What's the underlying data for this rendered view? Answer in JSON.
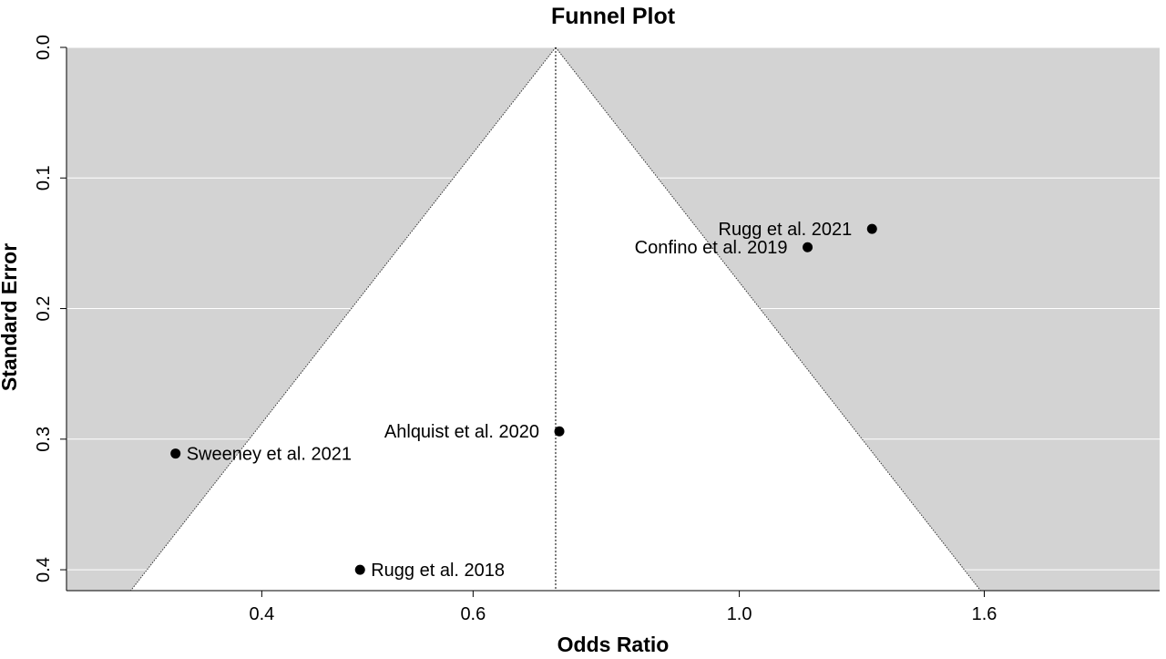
{
  "chart_data": {
    "type": "scatter",
    "title": "Funnel Plot",
    "xlabel": "Odds Ratio",
    "ylabel": "Standard Error",
    "x_scale": "log",
    "y_reversed": true,
    "xlim": [
      0.275,
      2.24
    ],
    "ylim": [
      0,
      0.416
    ],
    "x_ticks": [
      {
        "value": 0.4,
        "label": "0.4"
      },
      {
        "value": 0.6,
        "label": "0.6"
      },
      {
        "value": 1.0,
        "label": "1.0"
      },
      {
        "value": 1.6,
        "label": "1.6"
      }
    ],
    "y_ticks": [
      {
        "value": 0.0,
        "label": "0.0"
      },
      {
        "value": 0.1,
        "label": "0.1"
      },
      {
        "value": 0.2,
        "label": "0.2"
      },
      {
        "value": 0.3,
        "label": "0.3"
      },
      {
        "value": 0.4,
        "label": "0.4"
      }
    ],
    "pooled_estimate": 0.703,
    "funnel_z": 1.96,
    "grid": "horizontal",
    "points": [
      {
        "label": "Rugg et al. 2021",
        "x": 1.29,
        "y": 0.139,
        "label_side": "left"
      },
      {
        "label": "Confino et al. 2019",
        "x": 1.14,
        "y": 0.153,
        "label_side": "left"
      },
      {
        "label": "Ahlquist et al. 2020",
        "x": 0.708,
        "y": 0.294,
        "label_side": "left"
      },
      {
        "label": "Sweeney et al. 2021",
        "x": 0.339,
        "y": 0.311,
        "label_side": "right"
      },
      {
        "label": "Rugg et al. 2018",
        "x": 0.483,
        "y": 0.4,
        "label_side": "right"
      }
    ],
    "colors": {
      "outside_funnel": "#d3d3d3",
      "inside_funnel": "#ffffff",
      "grid": "#ffffff",
      "points": "#000000"
    }
  }
}
